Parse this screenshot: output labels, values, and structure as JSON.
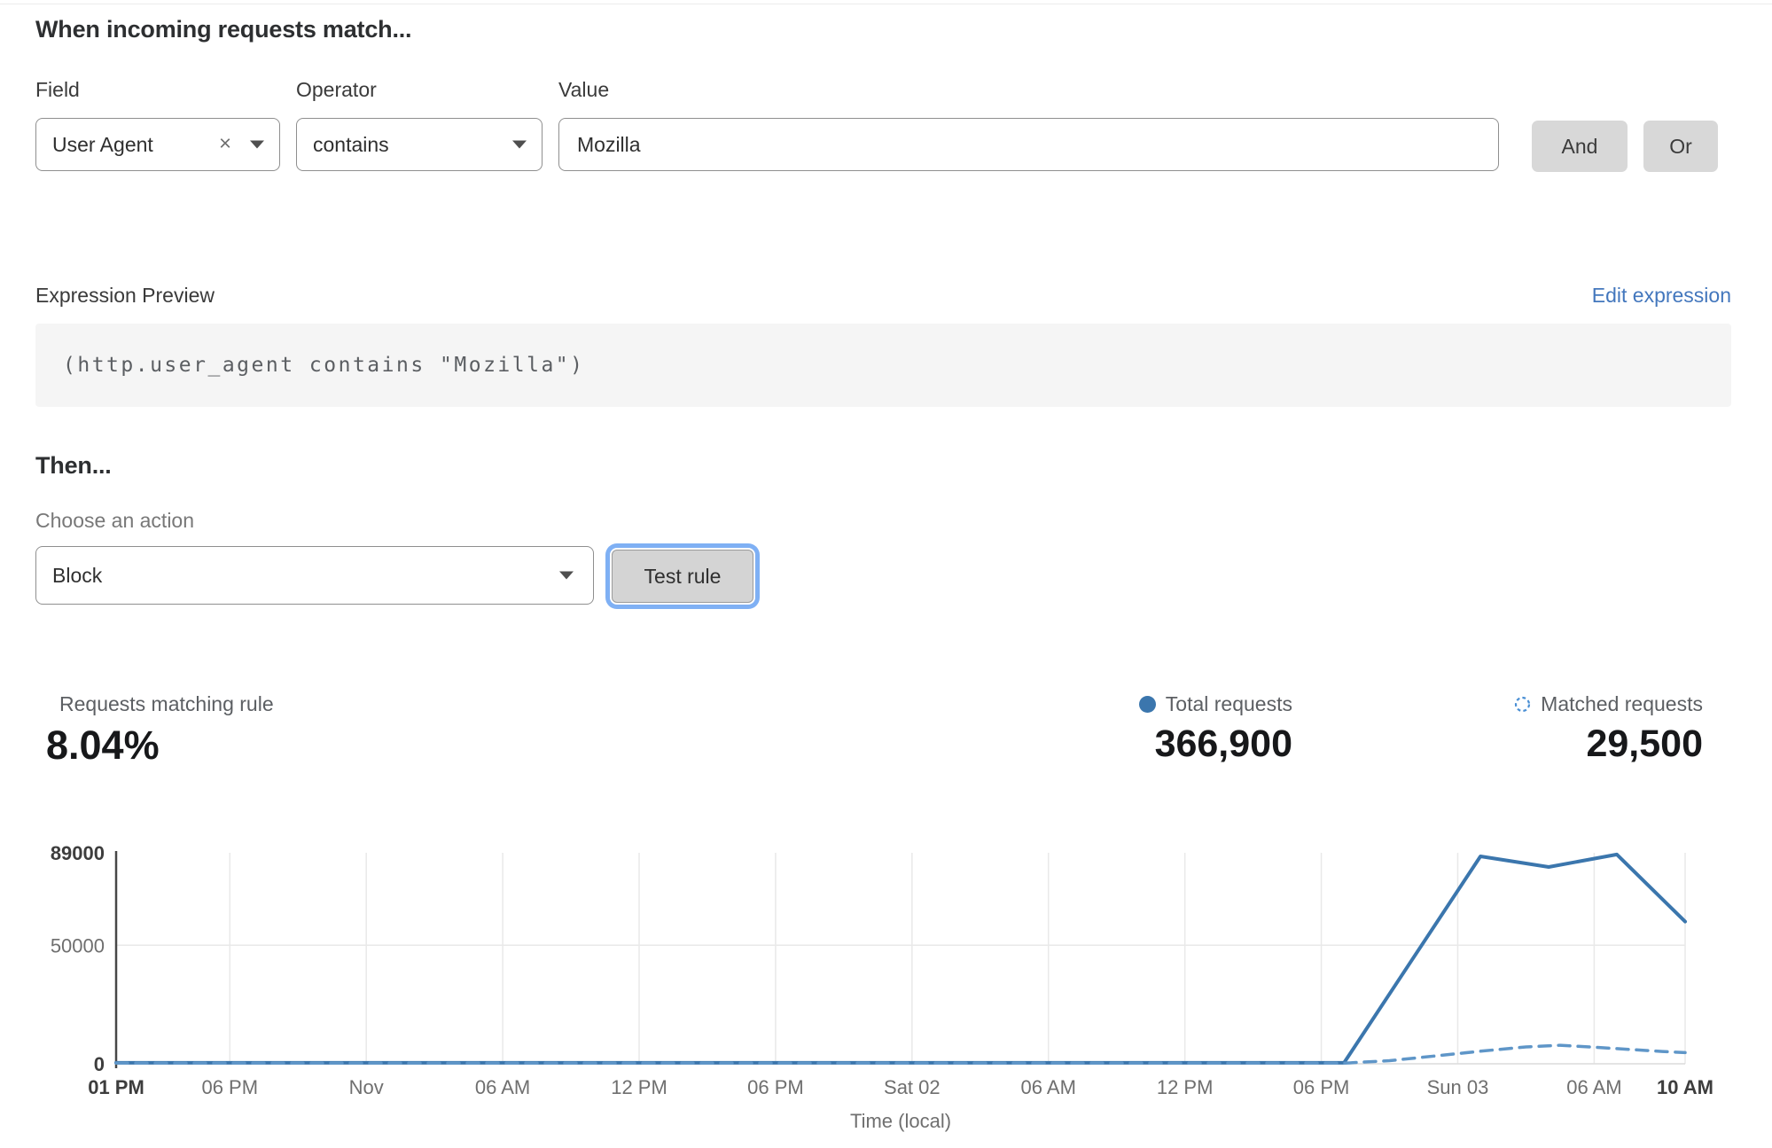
{
  "match": {
    "title": "When incoming requests match...",
    "field_label": "Field",
    "operator_label": "Operator",
    "value_label": "Value",
    "field_value": "User Agent",
    "operator_value": "contains",
    "value_text": "Mozilla",
    "clear_glyph": "×",
    "and_label": "And",
    "or_label": "Or"
  },
  "expression": {
    "label": "Expression Preview",
    "edit_link": "Edit expression",
    "code": "(http.user_agent contains \"Mozilla\")"
  },
  "then": {
    "title": "Then...",
    "action_label": "Choose an action",
    "action_value": "Block",
    "test_button": "Test rule"
  },
  "stats": {
    "matching_label": "Requests matching rule",
    "matching_value": "8.04%",
    "total_label": "Total requests",
    "total_value": "366,900",
    "matched_label": "Matched requests",
    "matched_value": "29,500"
  },
  "colors": {
    "accent_link": "#4377bd",
    "line_total": "#3b76ad",
    "line_matched": "#5f96c8",
    "grid": "#e9e9e9",
    "axis_dark": "#474747",
    "axis_light": "#dcdcdc",
    "tick_bold": "#3d3d3d",
    "tick_normal": "#6f6f6f",
    "focus_ring": "#7fb0f4"
  },
  "chart_data": {
    "type": "line",
    "title": "",
    "xlabel": "Time (local)",
    "ylabel": "",
    "x_hours_range": [
      0,
      69
    ],
    "ylim": [
      0,
      89000
    ],
    "grid": true,
    "legend_position": "above-right",
    "yticks": [
      {
        "v": 0,
        "label": "0",
        "bold": true
      },
      {
        "v": 50000,
        "label": "50000",
        "bold": false
      },
      {
        "v": 89000,
        "label": "89000",
        "bold": true
      }
    ],
    "xticks": [
      {
        "h": 0,
        "label": "01 PM",
        "bold": true
      },
      {
        "h": 5,
        "label": "06 PM",
        "bold": false
      },
      {
        "h": 11,
        "label": "Nov",
        "bold": false
      },
      {
        "h": 17,
        "label": "06 AM",
        "bold": false
      },
      {
        "h": 23,
        "label": "12 PM",
        "bold": false
      },
      {
        "h": 29,
        "label": "06 PM",
        "bold": false
      },
      {
        "h": 35,
        "label": "Sat 02",
        "bold": false
      },
      {
        "h": 41,
        "label": "06 AM",
        "bold": false
      },
      {
        "h": 47,
        "label": "12 PM",
        "bold": false
      },
      {
        "h": 53,
        "label": "06 PM",
        "bold": false
      },
      {
        "h": 59,
        "label": "Sun 03",
        "bold": false
      },
      {
        "h": 65,
        "label": "06 AM",
        "bold": false
      },
      {
        "h": 69,
        "label": "10 AM",
        "bold": true
      }
    ],
    "series": [
      {
        "name": "Total requests",
        "style": "solid",
        "color": "#3b76ad",
        "points": [
          [
            0,
            400
          ],
          [
            14,
            400
          ],
          [
            27,
            400
          ],
          [
            40,
            400
          ],
          [
            54,
            400
          ],
          [
            57,
            44000
          ],
          [
            60,
            87500
          ],
          [
            63,
            83000
          ],
          [
            66,
            88300
          ],
          [
            69,
            60000
          ]
        ]
      },
      {
        "name": "Matched requests",
        "style": "dashed",
        "color": "#5f96c8",
        "points": [
          [
            0,
            250
          ],
          [
            14,
            250
          ],
          [
            27,
            250
          ],
          [
            40,
            250
          ],
          [
            54,
            250
          ],
          [
            56,
            1300
          ],
          [
            58,
            3300
          ],
          [
            60,
            5300
          ],
          [
            62,
            7100
          ],
          [
            63.5,
            7800
          ],
          [
            65,
            7000
          ],
          [
            66.5,
            6100
          ],
          [
            68,
            5200
          ],
          [
            69,
            4700
          ]
        ]
      }
    ]
  }
}
